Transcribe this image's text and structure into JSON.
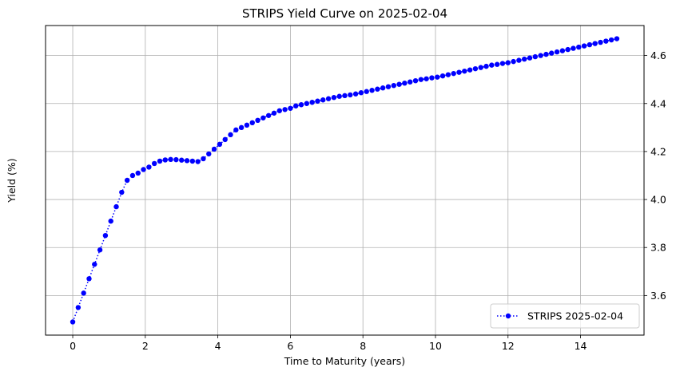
{
  "chart_data": {
    "type": "line",
    "title": "STRIPS Yield Curve on 2025-02-04",
    "xlabel": "Time to Maturity (years)",
    "ylabel": "Yield (%)",
    "xlim": [
      -0.75,
      15.75
    ],
    "ylim": [
      3.435,
      4.725
    ],
    "xticks": [
      0,
      2,
      4,
      6,
      8,
      10,
      12,
      14
    ],
    "yticks": [
      3.6,
      3.8,
      4.0,
      4.2,
      4.4,
      4.6
    ],
    "y_axis_position": "right",
    "grid": true,
    "legend_position": "lower-right",
    "series": [
      {
        "name": "STRIPS 2025-02-04",
        "color": "#0000ff",
        "line_style": "dotted",
        "marker": "circle",
        "x": [
          0.0,
          0.15,
          0.3,
          0.45,
          0.6,
          0.75,
          0.9,
          1.05,
          1.2,
          1.35,
          1.5,
          1.65,
          1.8,
          1.95,
          2.1,
          2.25,
          2.4,
          2.55,
          2.7,
          2.85,
          3.0,
          3.15,
          3.3,
          3.45,
          3.6,
          3.75,
          3.9,
          4.05,
          4.2,
          4.35,
          4.5,
          4.65,
          4.8,
          4.95,
          5.1,
          5.25,
          5.4,
          5.55,
          5.7,
          5.85,
          6.0,
          6.15,
          6.3,
          6.45,
          6.6,
          6.75,
          6.9,
          7.05,
          7.2,
          7.35,
          7.5,
          7.65,
          7.8,
          7.95,
          8.1,
          8.25,
          8.4,
          8.55,
          8.7,
          8.85,
          9.0,
          9.15,
          9.3,
          9.45,
          9.6,
          9.75,
          9.9,
          10.05,
          10.2,
          10.35,
          10.5,
          10.65,
          10.8,
          10.95,
          11.1,
          11.25,
          11.4,
          11.55,
          11.7,
          11.85,
          12.0,
          12.15,
          12.3,
          12.45,
          12.6,
          12.75,
          12.9,
          13.05,
          13.2,
          13.35,
          13.5,
          13.65,
          13.8,
          13.95,
          14.1,
          14.25,
          14.4,
          14.55,
          14.7,
          14.85,
          15.0
        ],
        "y": [
          3.49,
          3.55,
          3.61,
          3.67,
          3.73,
          3.79,
          3.85,
          3.91,
          3.97,
          4.03,
          4.08,
          4.1,
          4.11,
          4.125,
          4.135,
          4.15,
          4.16,
          4.165,
          4.167,
          4.166,
          4.164,
          4.162,
          4.16,
          4.158,
          4.17,
          4.19,
          4.21,
          4.23,
          4.25,
          4.27,
          4.29,
          4.3,
          4.31,
          4.32,
          4.33,
          4.34,
          4.35,
          4.36,
          4.37,
          4.375,
          4.38,
          4.39,
          4.395,
          4.4,
          4.405,
          4.41,
          4.415,
          4.42,
          4.425,
          4.43,
          4.433,
          4.436,
          4.44,
          4.445,
          4.45,
          4.455,
          4.46,
          4.465,
          4.47,
          4.475,
          4.48,
          4.485,
          4.49,
          4.495,
          4.5,
          4.503,
          4.507,
          4.51,
          4.515,
          4.52,
          4.525,
          4.53,
          4.535,
          4.54,
          4.545,
          4.55,
          4.555,
          4.56,
          4.563,
          4.567,
          4.57,
          4.575,
          4.58,
          4.585,
          4.59,
          4.595,
          4.6,
          4.605,
          4.61,
          4.615,
          4.62,
          4.625,
          4.63,
          4.635,
          4.64,
          4.645,
          4.65,
          4.655,
          4.66,
          4.665,
          4.67
        ]
      }
    ]
  }
}
